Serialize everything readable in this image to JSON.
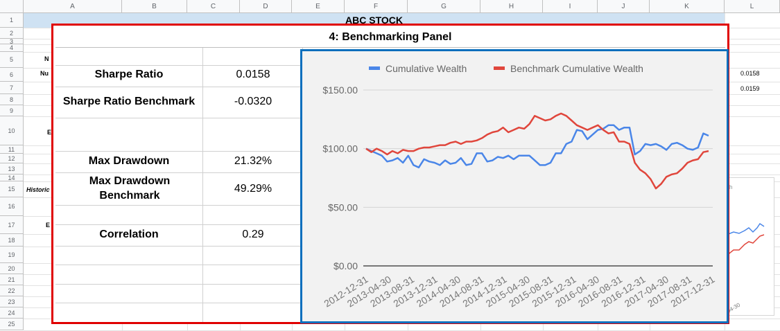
{
  "sheet": {
    "columns": [
      "A",
      "B",
      "C",
      "D",
      "E",
      "F",
      "G",
      "H",
      "I",
      "J",
      "K",
      "L"
    ],
    "rows": [
      "1",
      "2",
      "3",
      "4",
      "5",
      "6",
      "7",
      "8",
      "9",
      "10",
      "11",
      "12",
      "13",
      "14",
      "15",
      "16",
      "17",
      "18",
      "19",
      "20",
      "21",
      "22",
      "23",
      "24",
      "25"
    ],
    "title": "ABC STOCK",
    "partial_labels": {
      "row4": "N",
      "row5": "Nu",
      "row10": "E",
      "row15": "Historic",
      "row17": "E"
    },
    "right_values": [
      "0.0158",
      "0.0159"
    ]
  },
  "panel": {
    "title": "4: Benchmarking Panel",
    "metrics": [
      {
        "label": "Sharpe Ratio",
        "value": "0.0158"
      },
      {
        "label": "Sharpe Ratio Benchmark",
        "value": "-0.0320"
      },
      {
        "label": "Max Drawdown",
        "value": "21.32%"
      },
      {
        "label": "Max Drawdown Benchmark",
        "value": "49.29%"
      },
      {
        "label": "Correlation",
        "value": "0.29"
      }
    ]
  },
  "colors": {
    "panel_border": "#e00000",
    "chart_border": "#0b6fbd",
    "series_wealth": "#4a86e8",
    "series_benchmark": "#e0463c"
  },
  "chart_data": {
    "type": "line",
    "legend_position": "top",
    "y_ticks": [
      "$0.00",
      "$50.00",
      "$100.00",
      "$150.00"
    ],
    "ylim": [
      0,
      150
    ],
    "grid": true,
    "x_ticks": [
      "2012-12-31",
      "2013-04-30",
      "2013-08-31",
      "2013-12-31",
      "2014-04-30",
      "2014-08-31",
      "2014-12-31",
      "2015-04-30",
      "2015-08-31",
      "2015-12-31",
      "2016-04-30",
      "2016-08-31",
      "2016-12-31",
      "2017-04-30",
      "2017-08-31",
      "2017-12-31"
    ],
    "series": [
      {
        "name": "Cumulative Wealth",
        "color": "#4a86e8",
        "values": [
          100,
          98,
          96,
          94,
          89,
          90,
          92,
          88,
          94,
          86,
          84,
          91,
          89,
          88,
          86,
          90,
          87,
          88,
          92,
          86,
          87,
          96,
          96,
          89,
          90,
          93,
          92,
          94,
          91,
          94,
          94,
          94,
          90,
          86,
          86,
          88,
          96,
          96,
          104,
          106,
          116,
          115,
          108,
          112,
          116,
          117,
          120,
          120,
          116,
          118,
          118,
          95,
          98,
          104,
          103,
          104,
          102,
          99,
          104,
          105,
          103,
          100,
          99,
          101,
          113,
          111
        ],
        "x_start_index": 0,
        "x_end_index": 60
      },
      {
        "name": "Benchmark Cumulative Wealth",
        "color": "#e0463c",
        "values": [
          100,
          97,
          100,
          98,
          95,
          98,
          96,
          99,
          98,
          98,
          100,
          101,
          101,
          102,
          103,
          103,
          105,
          106,
          104,
          106,
          106,
          107,
          109,
          112,
          114,
          115,
          118,
          114,
          116,
          118,
          117,
          121,
          128,
          126,
          124,
          125,
          128,
          130,
          128,
          124,
          120,
          118,
          116,
          118,
          120,
          116,
          113,
          114,
          106,
          106,
          104,
          88,
          82,
          79,
          74,
          66,
          70,
          76,
          78,
          79,
          83,
          88,
          90,
          91,
          97,
          98
        ],
        "x_start_index": 0,
        "x_end_index": 60
      }
    ]
  }
}
